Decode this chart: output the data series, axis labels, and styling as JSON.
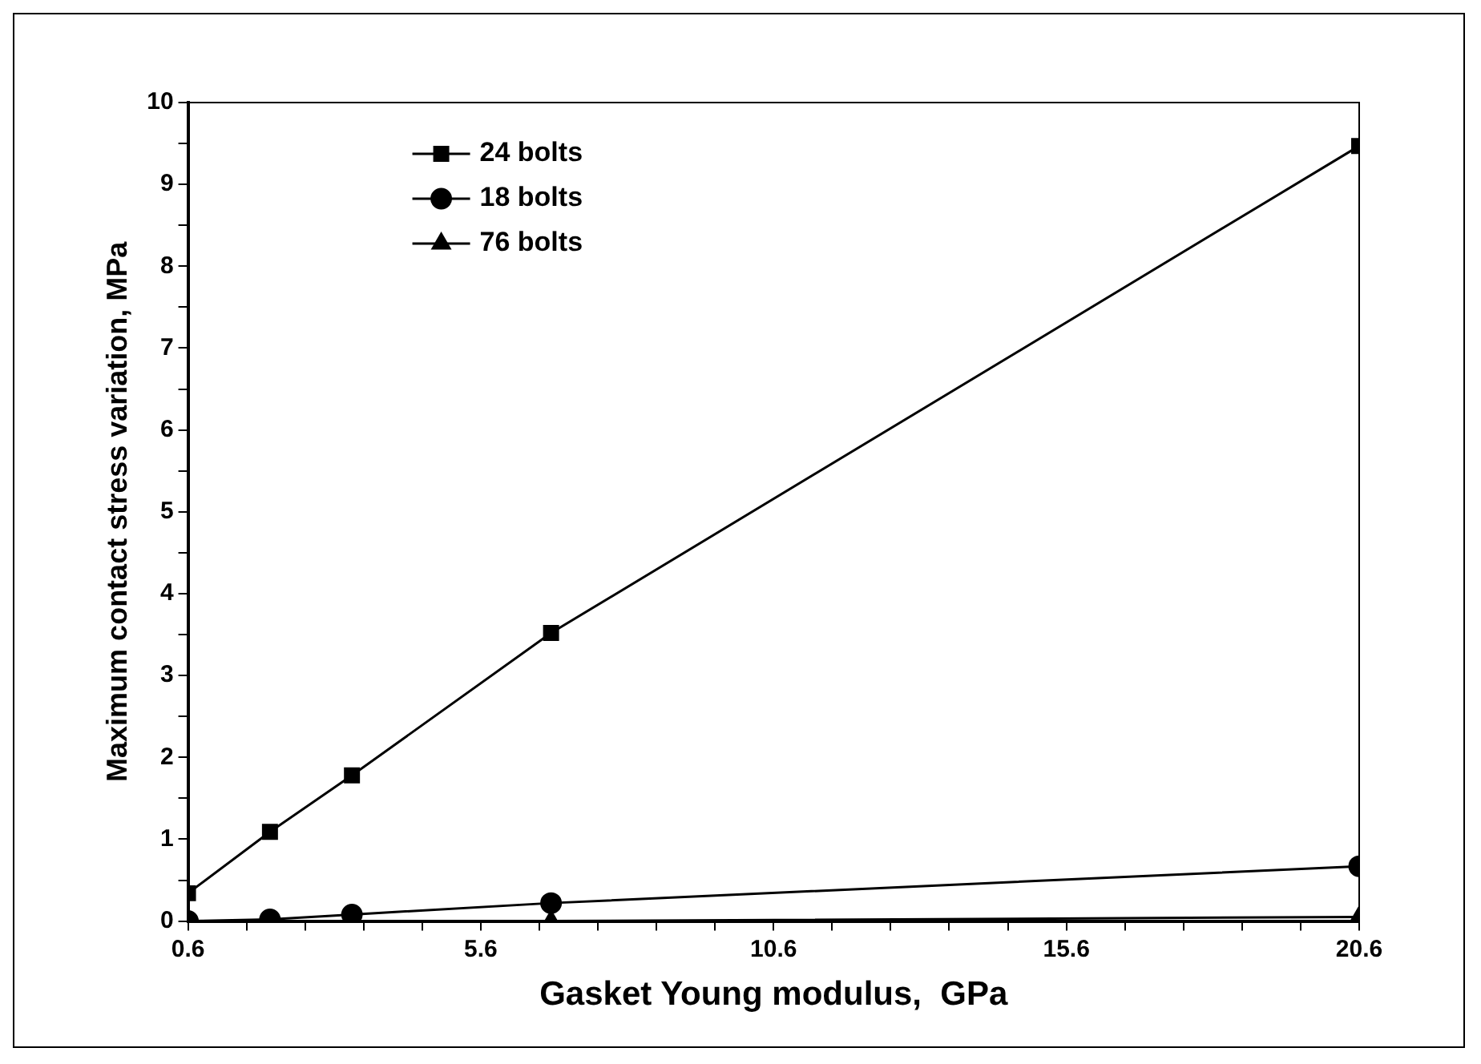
{
  "chart_data": {
    "type": "line",
    "xlabel": "Gasket Young modulus,  GPa",
    "ylabel": "Maximum contact stress variation, MPa",
    "x": [
      0.6,
      2,
      3.4,
      6.8,
      20.6
    ],
    "series": [
      {
        "name": "24 bolts",
        "color": "#000000",
        "marker": "square",
        "values": [
          0.34,
          1.09,
          1.78,
          3.52,
          9.47
        ]
      },
      {
        "name": "18 bolts",
        "color": "#000000",
        "marker": "circle",
        "values": [
          0,
          0.02,
          0.08,
          0.22,
          0.67
        ]
      },
      {
        "name": "76 bolts",
        "color": "#000000",
        "marker": "triangle",
        "values": [
          0,
          0,
          0,
          0,
          0.05
        ]
      }
    ],
    "xlim": [
      0.6,
      20.6
    ],
    "xticks": [
      0.6,
      {
        "value": 1.6,
        "label": null
      },
      {
        "value": 2.6,
        "label": null
      },
      {
        "value": 3.6,
        "label": null
      },
      {
        "value": 4.6,
        "label": null
      },
      5.6,
      {
        "value": 6.6,
        "label": null
      },
      {
        "value": 7.6,
        "label": null
      },
      {
        "value": 8.6,
        "label": null
      },
      {
        "value": 9.6,
        "label": null
      },
      10.6,
      {
        "value": 11.6,
        "label": null
      },
      {
        "value": 12.6,
        "label": null
      },
      {
        "value": 13.6,
        "label": null
      },
      {
        "value": 14.6,
        "label": null
      },
      15.6,
      {
        "value": 16.6,
        "label": null
      },
      {
        "value": 17.6,
        "label": null
      },
      {
        "value": 18.6,
        "label": null
      },
      {
        "value": 19.6,
        "label": null
      },
      20.6
    ],
    "ylim": [
      0,
      10
    ],
    "yticks": [
      0,
      {
        "value": 0.5,
        "label": null
      },
      1,
      {
        "value": 1.5,
        "label": null
      },
      2,
      {
        "value": 2.5,
        "label": null
      },
      3,
      {
        "value": 3.5,
        "label": null
      },
      4,
      {
        "value": 4.5,
        "label": null
      },
      5,
      {
        "value": 5.5,
        "label": null
      },
      6,
      {
        "value": 6.5,
        "label": null
      },
      7,
      {
        "value": 7.5,
        "label": null
      },
      8,
      {
        "value": 8.5,
        "label": null
      },
      9,
      {
        "value": 9.5,
        "label": null
      },
      10
    ],
    "grid": false,
    "legend": "top left",
    "line_style": "solid"
  }
}
